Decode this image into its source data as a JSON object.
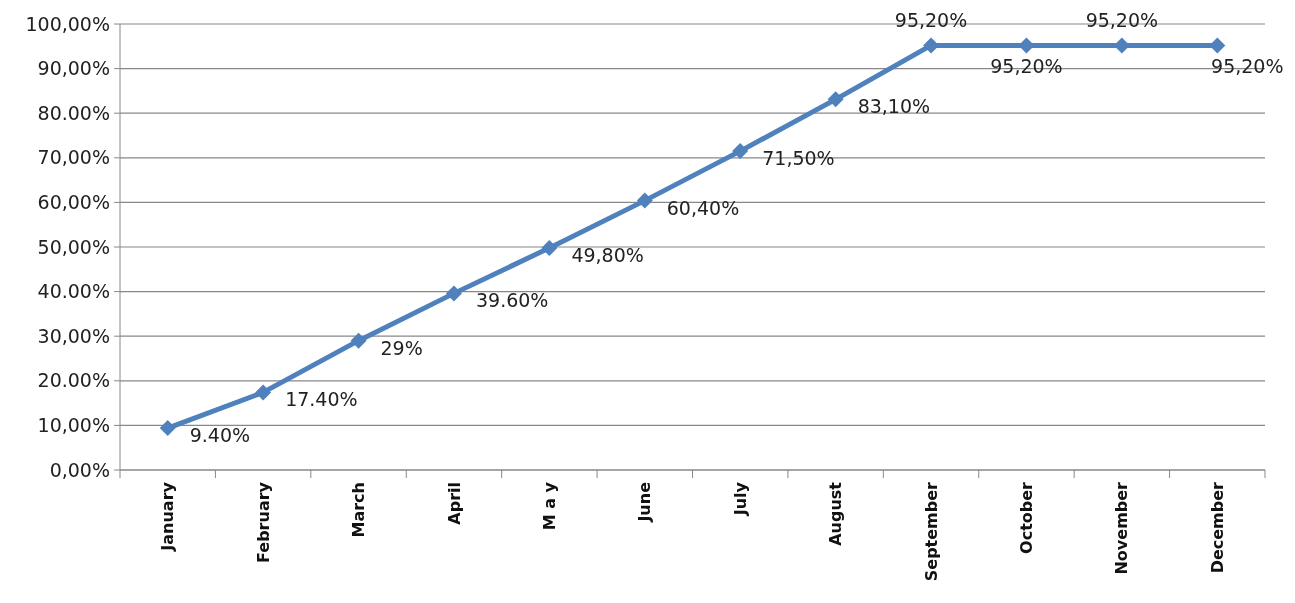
{
  "chart_data": {
    "type": "line",
    "categories": [
      "January",
      "February",
      "March",
      "April",
      "M a y",
      "June",
      "July",
      "August",
      "September",
      "October",
      "November",
      "December"
    ],
    "series": [
      {
        "color": "#4f81bd",
        "values": [
          9.4,
          17.4,
          29,
          39.6,
          49.8,
          60.4,
          71.5,
          83.1,
          95.2,
          95.2,
          95.2,
          95.2
        ],
        "value_labels": [
          "9.40%",
          "17.40%",
          "29%",
          "39.60%",
          "49,80%",
          "60,40%",
          "71,50%",
          "83,10%",
          "95,20%",
          "95,20%",
          "95,20%",
          "95,20%"
        ]
      }
    ],
    "ylim": [
      0,
      100
    ],
    "yticks": [
      {
        "value": 0,
        "label": "0,00%"
      },
      {
        "value": 10,
        "label": "10,00%"
      },
      {
        "value": 20,
        "label": "20.00%"
      },
      {
        "value": 30,
        "label": "30,00%"
      },
      {
        "value": 40,
        "label": "40.00%"
      },
      {
        "value": 50,
        "label": "50,00%"
      },
      {
        "value": 60,
        "label": "60,00%"
      },
      {
        "value": 70,
        "label": "70,00%"
      },
      {
        "value": 80,
        "label": "80.00%"
      },
      {
        "value": 90,
        "label": "90,00%"
      },
      {
        "value": 100,
        "label": "100,00%"
      }
    ],
    "grid": "y",
    "marker": "diamond",
    "line_style": "solid"
  }
}
